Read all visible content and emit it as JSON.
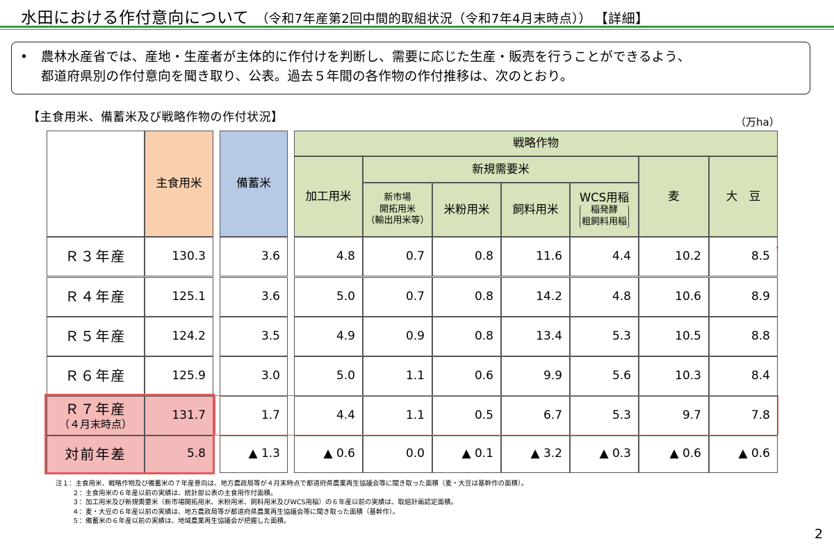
{
  "header": {
    "title": "水田における作付意向について",
    "subtitle": "（令和7年産第2回中間的取組状況（令和7年4月末時点））",
    "tag": "【詳細】"
  },
  "intro": {
    "bullet": "•",
    "text_line1": "農林水産省では、産地・生産者が主体的に作付けを判断し、需要に応じた生産・販売を行うことができるよう、",
    "text_line2": "都道府県別の作付意向を聞き取り、公表。過去５年間の各作物の作付推移は、次のとおり。"
  },
  "section": {
    "title": "【主食用米、備蓄米及び戦略作物の作付状況】",
    "unit": "（万ha）"
  },
  "table": {
    "headers": {
      "shushoku": "主食用米",
      "bichiku": "備蓄米",
      "senryaku": "戦略作物",
      "kakou": "加工用米",
      "shinki": "新規需要米",
      "shinshijo_l1": "新市場",
      "shinshijo_l2": "開拓用米",
      "shinshijo_l3": "（輸出用米等）",
      "komeko": "米粉用米",
      "shiryo": "飼料用米",
      "wcs_l1": "WCS用稲",
      "wcs_l2": "稲発酵",
      "wcs_l3": "粗飼料用稲",
      "mugi": "麦",
      "daizu": "大　豆"
    },
    "rows": [
      {
        "label": "Ｒ３年産",
        "values": [
          "130.3",
          "3.6",
          "4.8",
          "0.7",
          "0.8",
          "11.6",
          "4.4",
          "10.2",
          "8.5"
        ]
      },
      {
        "label": "Ｒ４年産",
        "values": [
          "125.1",
          "3.6",
          "5.0",
          "0.7",
          "0.8",
          "14.2",
          "4.8",
          "10.6",
          "8.9"
        ]
      },
      {
        "label": "Ｒ５年産",
        "values": [
          "124.2",
          "3.5",
          "4.9",
          "0.9",
          "0.8",
          "13.4",
          "5.3",
          "10.5",
          "8.8"
        ]
      },
      {
        "label": "Ｒ６年産",
        "values": [
          "125.9",
          "3.0",
          "5.0",
          "1.1",
          "0.6",
          "9.9",
          "5.6",
          "10.3",
          "8.4"
        ]
      },
      {
        "label": "Ｒ７年産",
        "label2": "（４月末時点）",
        "values": [
          "131.7",
          "1.7",
          "4.4",
          "1.1",
          "0.5",
          "6.7",
          "5.3",
          "9.7",
          "7.8"
        ]
      },
      {
        "label": "対前年差",
        "values": [
          "5.8",
          "▲ 1.3",
          "▲ 0.6",
          "0.0",
          "▲ 0.1",
          "▲ 3.2",
          "▲ 0.3",
          "▲ 0.6",
          "▲ 0.6"
        ]
      }
    ]
  },
  "notes": [
    "注１：主食用米、戦略作物及び備蓄米の７年産意向は、地方農政局等が４月末時点で都道府県農業再生協議会等に聞き取った面積（麦・大豆は基幹作の面積）。",
    "２：主食用米の６年産以前の実績は、統計部公表の主食用作付面積。",
    "３：加工用米及び新規需要米（新市場開拓用米、米粉用米、飼料用米及びWCS用稲）の６年産以前の実績は、取組計画認定面積。",
    "４：麦・大豆の６年産以前の実績は、地方農政局等が都道府県農業再生協議会等に聞き取った面積（基幹作）。",
    "５：備蓄米の６年産以前の実績は、地域農業再生協議会が把握した面積。"
  ],
  "page_number": "2",
  "colors": {
    "accent_green": "#2f9e3f",
    "shushoku_bg": "#f9cfae",
    "bichiku_bg": "#b6c9e5",
    "senryaku_bg": "#d7e3bb",
    "highlight_bg": "#f4b9b9",
    "highlight_border": "#e05a5a"
  }
}
